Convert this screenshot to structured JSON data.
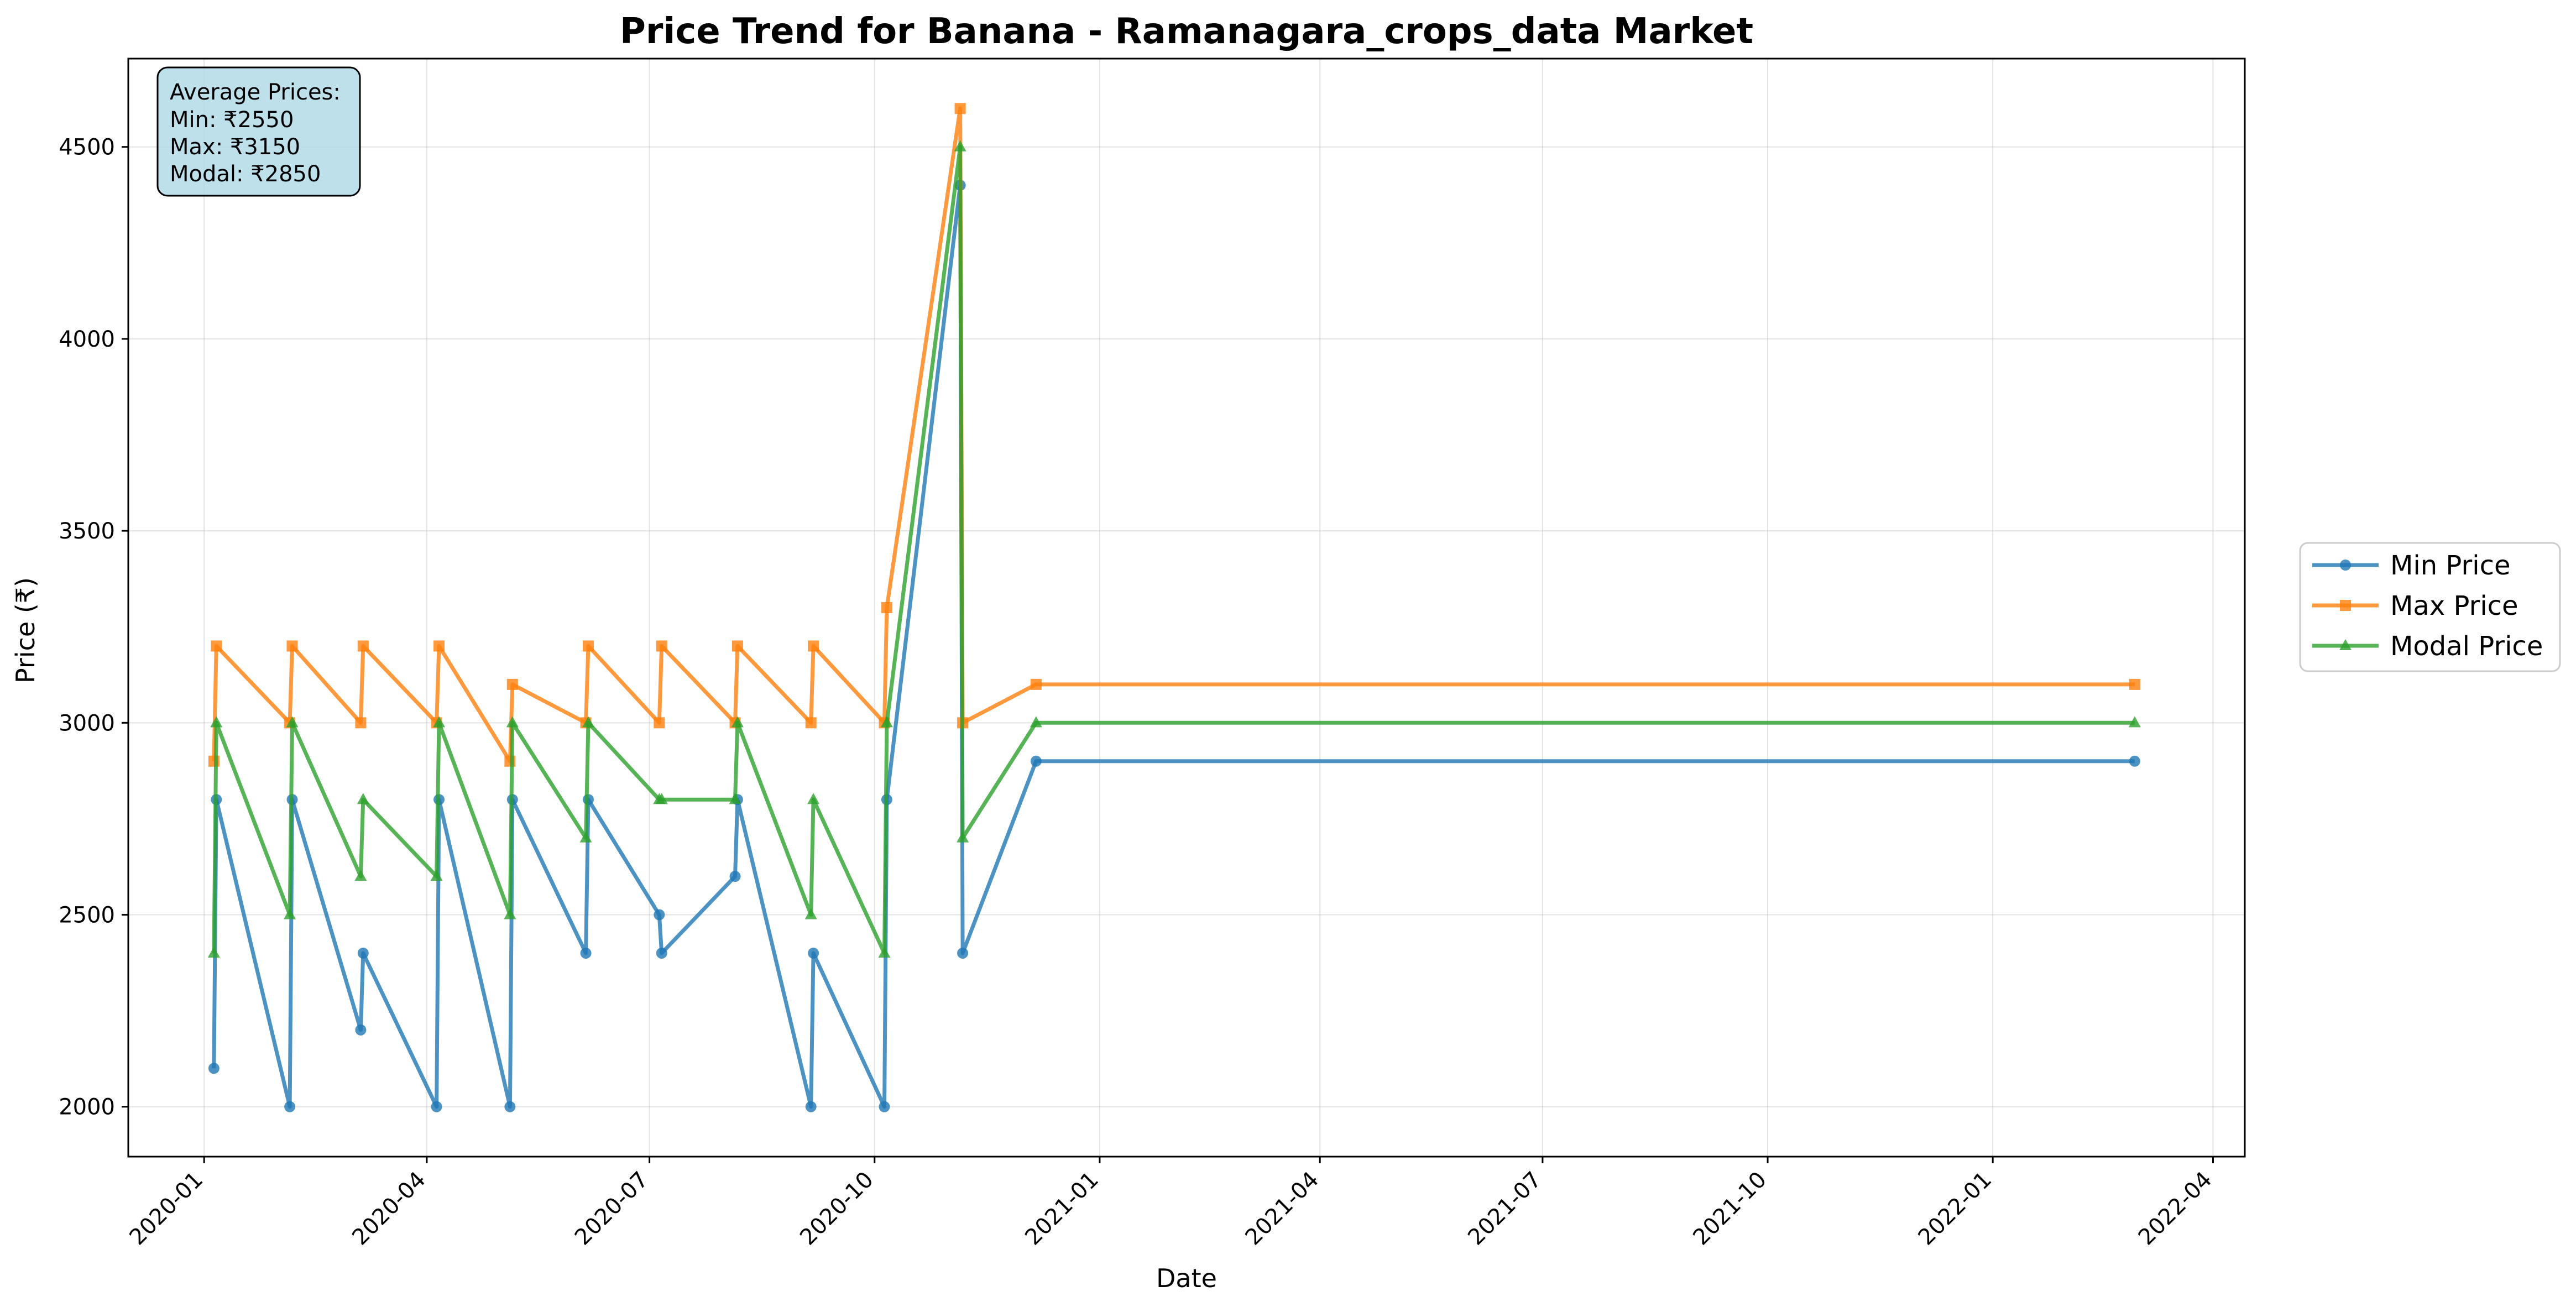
{
  "chart_data": {
    "type": "line",
    "title": "Price Trend for Banana - Ramanagara_crops_data Market",
    "xlabel": "Date",
    "ylabel": "Price (₹)",
    "xlim": [
      "2019-12-01",
      "2022-04-14"
    ],
    "ylim": [
      1870,
      4730
    ],
    "x_ticks": [
      "2020-01",
      "2020-04",
      "2020-07",
      "2020-10",
      "2021-01",
      "2021-04",
      "2021-07",
      "2021-10",
      "2022-01",
      "2022-04"
    ],
    "y_ticks": [
      2000,
      2500,
      3000,
      3500,
      4000,
      4500
    ],
    "grid": true,
    "legend_position": "right, outside plot area",
    "x": [
      "2020-01-05",
      "2020-01-06",
      "2020-02-05",
      "2020-02-06",
      "2020-03-05",
      "2020-03-06",
      "2020-04-05",
      "2020-04-06",
      "2020-05-05",
      "2020-05-06",
      "2020-06-05",
      "2020-06-06",
      "2020-07-05",
      "2020-07-06",
      "2020-08-05",
      "2020-08-06",
      "2020-09-05",
      "2020-09-06",
      "2020-10-05",
      "2020-10-06",
      "2020-11-05",
      "2020-11-06",
      "2020-12-06",
      "2022-02-28"
    ],
    "series": [
      {
        "name": "Min Price",
        "color": "#1f77b4",
        "marker": "circle",
        "values": [
          2100,
          2800,
          2000,
          2800,
          2200,
          2400,
          2000,
          2800,
          2000,
          2800,
          2400,
          2800,
          2500,
          2400,
          2600,
          2800,
          2000,
          2400,
          2000,
          2800,
          4400,
          2400,
          2900,
          2900
        ]
      },
      {
        "name": "Max Price",
        "color": "#ff7f0e",
        "marker": "square",
        "values": [
          2900,
          3200,
          3000,
          3200,
          3000,
          3200,
          3000,
          3200,
          2900,
          3100,
          3000,
          3200,
          3000,
          3200,
          3000,
          3200,
          3000,
          3200,
          3000,
          3300,
          4600,
          3000,
          3100,
          3100
        ]
      },
      {
        "name": "Modal Price",
        "color": "#2ca02c",
        "marker": "triangle",
        "values": [
          2400,
          3000,
          2500,
          3000,
          2600,
          2800,
          2600,
          3000,
          2500,
          3000,
          2700,
          3000,
          2800,
          2800,
          2800,
          3000,
          2500,
          2800,
          2400,
          3000,
          4500,
          2700,
          3000,
          3000
        ]
      }
    ],
    "annotation": {
      "heading": "Average Prices:",
      "lines": [
        "Min: ₹2550",
        "Max: ₹3150",
        "Modal: ₹2850"
      ],
      "background": "#add8e6"
    }
  }
}
